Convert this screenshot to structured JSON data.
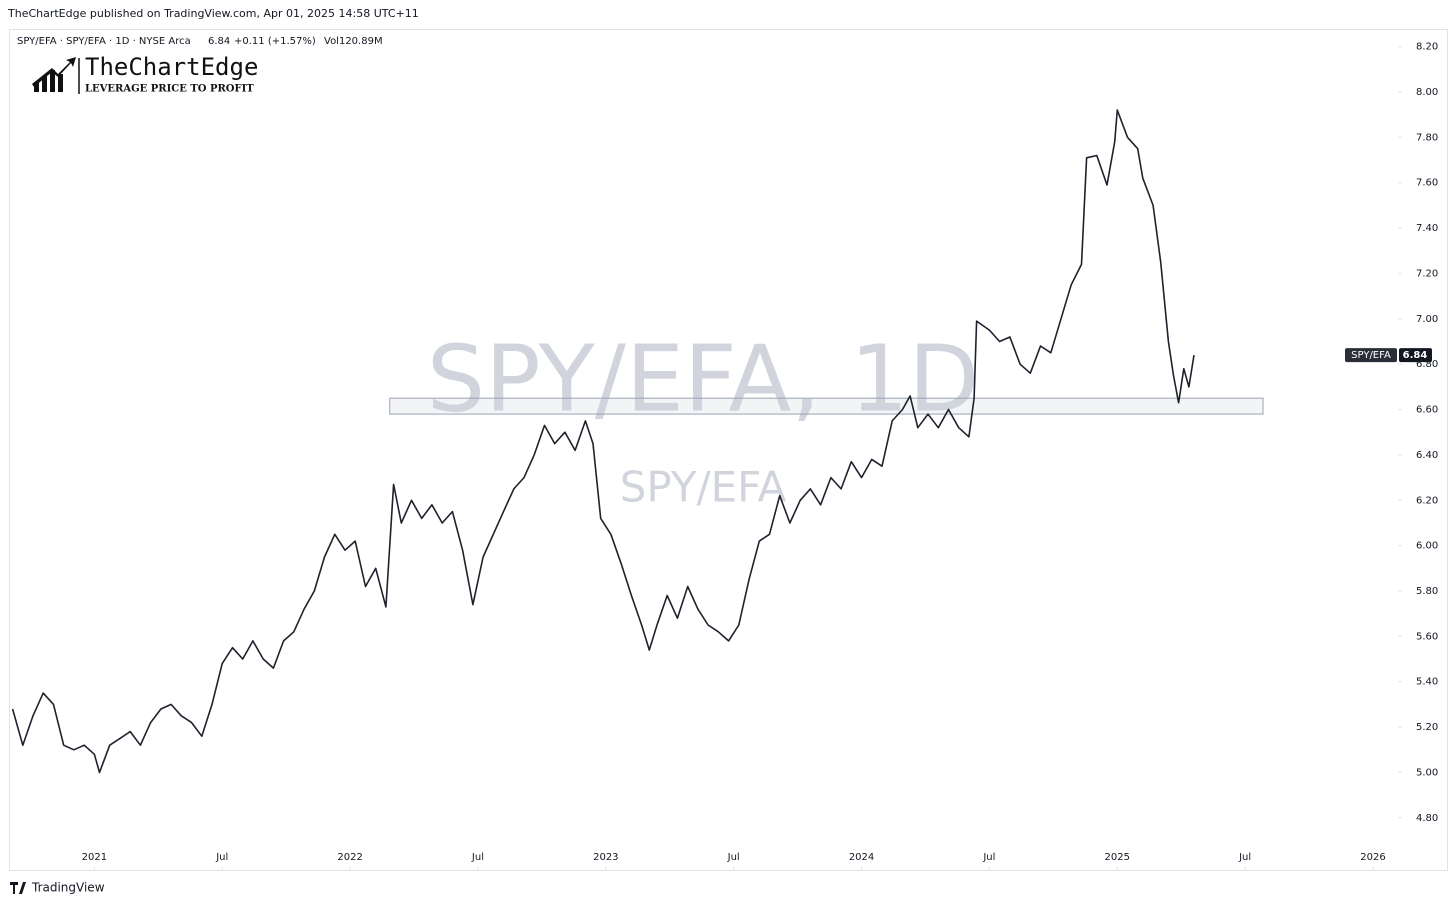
{
  "header": "TheChartEdge published on TradingView.com, Apr 01, 2025 14:58 UTC+11",
  "legend": {
    "symbol": "SPY/EFA · SPY/EFA · 1D · NYSE Arca",
    "last": "6.84",
    "change": "+0.11 (+1.57%)",
    "volume": "Vol120.89M"
  },
  "logo": {
    "name": "TheChartEdge",
    "tagline": "LEVERAGE PRICE TO PROFIT"
  },
  "watermark": {
    "main": "SPY/EFA, 1D",
    "sub": "SPY/EFA"
  },
  "footer": "TradingView",
  "chart_data": {
    "type": "line",
    "x": [
      2020.68,
      2020.72,
      2020.76,
      2020.8,
      2020.84,
      2020.88,
      2020.92,
      2020.96,
      2021.0,
      2021.02,
      2021.06,
      2021.1,
      2021.14,
      2021.18,
      2021.22,
      2021.26,
      2021.3,
      2021.34,
      2021.38,
      2021.42,
      2021.46,
      2021.5,
      2021.54,
      2021.58,
      2021.62,
      2021.66,
      2021.7,
      2021.74,
      2021.78,
      2021.82,
      2021.86,
      2021.9,
      2021.94,
      2021.98,
      2022.02,
      2022.06,
      2022.1,
      2022.14,
      2022.17,
      2022.2,
      2022.24,
      2022.28,
      2022.32,
      2022.36,
      2022.4,
      2022.44,
      2022.48,
      2022.52,
      2022.56,
      2022.6,
      2022.64,
      2022.68,
      2022.72,
      2022.76,
      2022.8,
      2022.84,
      2022.88,
      2022.92,
      2022.95,
      2022.98,
      2023.02,
      2023.06,
      2023.1,
      2023.14,
      2023.17,
      2023.2,
      2023.24,
      2023.28,
      2023.32,
      2023.36,
      2023.4,
      2023.44,
      2023.48,
      2023.52,
      2023.56,
      2023.6,
      2023.64,
      2023.68,
      2023.72,
      2023.76,
      2023.8,
      2023.84,
      2023.88,
      2023.92,
      2023.96,
      2024.0,
      2024.04,
      2024.08,
      2024.12,
      2024.16,
      2024.19,
      2024.22,
      2024.26,
      2024.3,
      2024.34,
      2024.38,
      2024.42,
      2024.44,
      2024.45,
      2024.5,
      2024.54,
      2024.58,
      2024.62,
      2024.66,
      2024.7,
      2024.74,
      2024.78,
      2024.82,
      2024.86,
      2024.88,
      2024.92,
      2024.96,
      2024.99,
      2025.0,
      2025.04,
      2025.08,
      2025.1,
      2025.14,
      2025.17,
      2025.2,
      2025.22,
      2025.24,
      2025.26,
      2025.28,
      2025.3
    ],
    "series": [
      {
        "name": "SPY/EFA",
        "color": "#1e222d",
        "values": [
          5.28,
          5.12,
          5.25,
          5.35,
          5.3,
          5.12,
          5.1,
          5.12,
          5.08,
          5.0,
          5.12,
          5.15,
          5.18,
          5.12,
          5.22,
          5.28,
          5.3,
          5.25,
          5.22,
          5.16,
          5.3,
          5.48,
          5.55,
          5.5,
          5.58,
          5.5,
          5.46,
          5.58,
          5.62,
          5.72,
          5.8,
          5.95,
          6.05,
          5.98,
          6.02,
          5.82,
          5.9,
          5.73,
          6.27,
          6.1,
          6.2,
          6.12,
          6.18,
          6.1,
          6.15,
          5.98,
          5.74,
          5.95,
          6.05,
          6.15,
          6.25,
          6.3,
          6.4,
          6.53,
          6.45,
          6.5,
          6.42,
          6.55,
          6.45,
          6.12,
          6.05,
          5.92,
          5.78,
          5.65,
          5.54,
          5.65,
          5.78,
          5.68,
          5.82,
          5.72,
          5.65,
          5.62,
          5.58,
          5.65,
          5.85,
          6.02,
          6.05,
          6.22,
          6.1,
          6.2,
          6.25,
          6.18,
          6.3,
          6.25,
          6.37,
          6.3,
          6.38,
          6.35,
          6.55,
          6.6,
          6.66,
          6.52,
          6.58,
          6.52,
          6.6,
          6.52,
          6.48,
          6.65,
          6.99,
          6.95,
          6.9,
          6.92,
          6.8,
          6.76,
          6.88,
          6.85,
          7.0,
          7.15,
          7.24,
          7.71,
          7.72,
          7.59,
          7.78,
          7.92,
          7.8,
          7.75,
          7.62,
          7.5,
          7.25,
          6.9,
          6.75,
          6.63,
          6.78,
          6.7,
          6.84
        ]
      }
    ],
    "zone": {
      "x": [
        2022.155,
        2025.57
      ],
      "y": [
        6.58,
        6.65
      ]
    },
    "price_tag": 6.84,
    "xlim": [
      2020.67,
      2026.09
    ],
    "xticks": [
      {
        "value": 2021,
        "label": "2021"
      },
      {
        "value": 2021.5,
        "label": "Jul"
      },
      {
        "value": 2022,
        "label": "2022"
      },
      {
        "value": 2022.5,
        "label": "Jul"
      },
      {
        "value": 2023,
        "label": "2023"
      },
      {
        "value": 2023.5,
        "label": "Jul"
      },
      {
        "value": 2024,
        "label": "2024"
      },
      {
        "value": 2024.5,
        "label": "Jul"
      },
      {
        "value": 2025,
        "label": "2025"
      },
      {
        "value": 2025.5,
        "label": "Jul"
      },
      {
        "value": 2026,
        "label": "2026"
      }
    ],
    "ylim": [
      4.57,
      8.26
    ],
    "yticks": [
      {
        "value": 4.8,
        "label": "4.80"
      },
      {
        "value": 5.0,
        "label": "5.00"
      },
      {
        "value": 5.2,
        "label": "5.20"
      },
      {
        "value": 5.4,
        "label": "5.40"
      },
      {
        "value": 5.6,
        "label": "5.60"
      },
      {
        "value": 5.8,
        "label": "5.80"
      },
      {
        "value": 6.0,
        "label": "6.00"
      },
      {
        "value": 6.2,
        "label": "6.20"
      },
      {
        "value": 6.4,
        "label": "6.40"
      },
      {
        "value": 6.6,
        "label": "6.60"
      },
      {
        "value": 6.8,
        "label": "6.80"
      },
      {
        "value": 7.0,
        "label": "7.00"
      },
      {
        "value": 7.2,
        "label": "7.20"
      },
      {
        "value": 7.4,
        "label": "7.40"
      },
      {
        "value": 7.6,
        "label": "7.60"
      },
      {
        "value": 7.8,
        "label": "7.80"
      },
      {
        "value": 8.0,
        "label": "8.00"
      },
      {
        "value": 8.2,
        "label": "8.20"
      }
    ]
  }
}
